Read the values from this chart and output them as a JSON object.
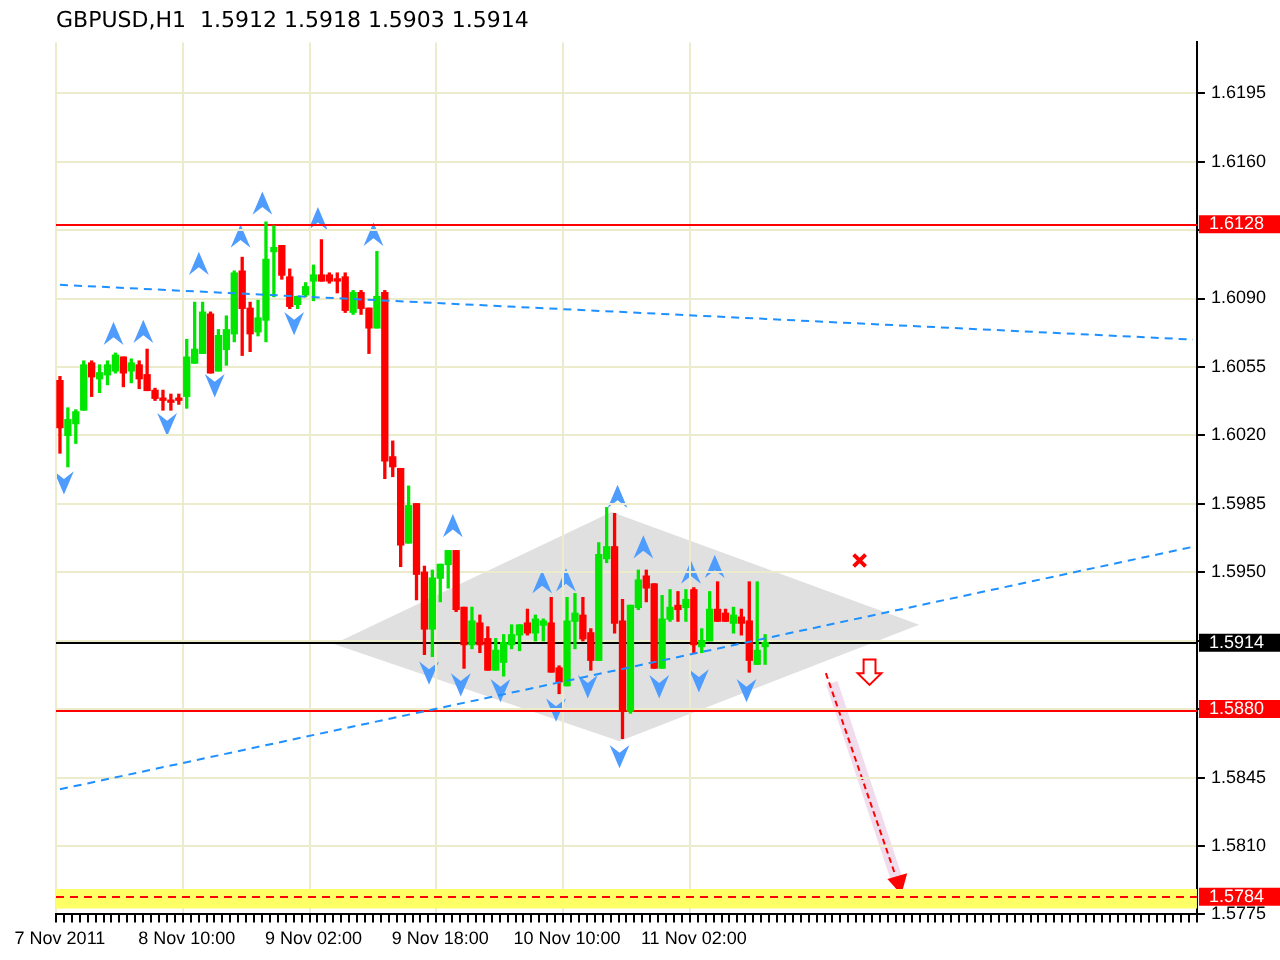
{
  "chart_data": {
    "type": "candlestick",
    "title": "GBPUSD,H1  1.5912 1.5918 1.5903 1.5914",
    "categories": [
      "7 Nov 2011",
      null,
      null,
      null,
      null,
      null,
      null,
      null,
      null,
      null,
      null,
      null,
      null,
      null,
      null,
      null,
      "8 Nov 10:00",
      null,
      null,
      null,
      null,
      null,
      null,
      null,
      null,
      null,
      null,
      null,
      null,
      null,
      null,
      null,
      "9 Nov 02:00",
      null,
      null,
      null,
      null,
      null,
      null,
      null,
      null,
      null,
      null,
      null,
      null,
      null,
      null,
      null,
      "9 Nov 18:00",
      null,
      null,
      null,
      null,
      null,
      null,
      null,
      null,
      null,
      null,
      null,
      null,
      null,
      null,
      null,
      "10 Nov 10:00",
      null,
      null,
      null,
      null,
      null,
      null,
      null,
      null,
      null,
      null,
      null,
      null,
      null,
      null,
      null,
      "11 Nov 02:00",
      null,
      null,
      null,
      null,
      null,
      null,
      null,
      null,
      null,
      null,
      null,
      null,
      null,
      null,
      null,
      null,
      null,
      null,
      null,
      null,
      null,
      null,
      null,
      null,
      null,
      null,
      null,
      null,
      null,
      null,
      null,
      null,
      null,
      null,
      null,
      null,
      null,
      null,
      null,
      null,
      null,
      null,
      null,
      null,
      null,
      null,
      null,
      null,
      null,
      null,
      null,
      null,
      null,
      null,
      null,
      null,
      null,
      null,
      null,
      null,
      null,
      null,
      null
    ],
    "ohlc": [
      [
        1.6048,
        1.605,
        1.6011,
        1.6024
      ],
      [
        1.602,
        1.6034,
        1.6004,
        1.6028
      ],
      [
        1.6026,
        1.6033,
        1.6016,
        1.6032
      ],
      [
        1.6033,
        1.6058,
        1.6033,
        1.6056
      ],
      [
        1.6057,
        1.6058,
        1.604,
        1.605
      ],
      [
        1.6049,
        1.6056,
        1.6042,
        1.6052
      ],
      [
        1.6051,
        1.6058,
        1.6046,
        1.6056
      ],
      [
        1.6053,
        1.6062,
        1.6052,
        1.6061
      ],
      [
        1.606,
        1.606,
        1.6045,
        1.6052
      ],
      [
        1.6053,
        1.6059,
        1.6047,
        1.6057
      ],
      [
        1.6056,
        1.6058,
        1.6044,
        1.6049
      ],
      [
        1.6051,
        1.6064,
        1.6043,
        1.6043
      ],
      [
        1.6043,
        1.6044,
        1.6038,
        1.6039
      ],
      [
        1.6039,
        1.6043,
        1.6033,
        1.6038
      ],
      [
        1.6038,
        1.6041,
        1.6033,
        1.6037
      ],
      [
        1.6039,
        1.6041,
        1.6036,
        1.6038
      ],
      [
        1.604,
        1.6069,
        1.6034,
        1.606
      ],
      [
        1.6057,
        1.6088,
        1.6057,
        1.6064
      ],
      [
        1.6062,
        1.6088,
        1.6062,
        1.6083
      ],
      [
        1.6082,
        1.6083,
        1.6052,
        1.6052
      ],
      [
        1.6053,
        1.6074,
        1.6053,
        1.6071
      ],
      [
        1.6064,
        1.6081,
        1.6056,
        1.6074
      ],
      [
        1.6072,
        1.6104,
        1.6068,
        1.6103
      ],
      [
        1.6104,
        1.6111,
        1.6061,
        1.6085
      ],
      [
        1.6085,
        1.6088,
        1.6063,
        1.6072
      ],
      [
        1.6073,
        1.6089,
        1.6071,
        1.608
      ],
      [
        1.6079,
        1.6129,
        1.6068,
        1.611
      ],
      [
        1.6114,
        1.6127,
        1.6091,
        1.6116
      ],
      [
        1.6117,
        1.6117,
        1.61,
        1.6102
      ],
      [
        1.6101,
        1.6105,
        1.6085,
        1.6086
      ],
      [
        1.6087,
        1.6091,
        1.6085,
        1.6091
      ],
      [
        1.6092,
        1.6098,
        1.6091,
        1.6096
      ],
      [
        1.6099,
        1.6107,
        1.6089,
        1.6102
      ],
      [
        1.6102,
        1.612,
        1.6099,
        1.6099
      ],
      [
        1.6102,
        1.6103,
        1.6098,
        1.6099
      ],
      [
        1.61,
        1.6103,
        1.6093,
        1.6099
      ],
      [
        1.6101,
        1.6103,
        1.6083,
        1.6084
      ],
      [
        1.6083,
        1.6094,
        1.6082,
        1.6093
      ],
      [
        1.6093,
        1.6094,
        1.6082,
        1.6085
      ],
      [
        1.6085,
        1.6085,
        1.6062,
        1.6075
      ],
      [
        1.6075,
        1.6114,
        1.6075,
        1.6091
      ],
      [
        1.6093,
        1.6094,
        1.5998,
        1.6007
      ],
      [
        1.6009,
        1.6017,
        1.5999,
        1.6004
      ],
      [
        1.6003,
        1.6003,
        1.5953,
        1.5964
      ],
      [
        1.5965,
        1.5994,
        1.5965,
        1.5984
      ],
      [
        1.5985,
        1.5985,
        1.5936,
        1.5949
      ],
      [
        1.595,
        1.5953,
        1.5908,
        1.5921
      ],
      [
        1.5921,
        1.5951,
        1.5907,
        1.5947
      ],
      [
        1.5947,
        1.5954,
        1.5935,
        1.5954
      ],
      [
        1.5954,
        1.5961,
        1.5942,
        1.5961
      ],
      [
        1.5961,
        1.5961,
        1.593,
        1.5931
      ],
      [
        1.5932,
        1.5932,
        1.5901,
        1.5913
      ],
      [
        1.5913,
        1.5932,
        1.5911,
        1.5925
      ],
      [
        1.5924,
        1.5928,
        1.5909,
        1.5913
      ],
      [
        1.5916,
        1.5922,
        1.59,
        1.59
      ],
      [
        1.59,
        1.5916,
        1.59,
        1.591
      ],
      [
        1.5904,
        1.5918,
        1.5897,
        1.5914
      ],
      [
        1.5913,
        1.5923,
        1.5911,
        1.5918
      ],
      [
        1.5918,
        1.5923,
        1.591,
        1.5923
      ],
      [
        1.5924,
        1.5931,
        1.5918,
        1.5919
      ],
      [
        1.5919,
        1.5928,
        1.5915,
        1.5926
      ],
      [
        1.5923,
        1.5926,
        1.5915,
        1.5925
      ],
      [
        1.5924,
        1.5937,
        1.5899,
        1.5899
      ],
      [
        1.5901,
        1.5902,
        1.5888,
        1.5894
      ],
      [
        1.5892,
        1.5937,
        1.5892,
        1.5925
      ],
      [
        1.5925,
        1.5939,
        1.5911,
        1.5929
      ],
      [
        1.5928,
        1.5937,
        1.5915,
        1.5916
      ],
      [
        1.5919,
        1.5921,
        1.59,
        1.5905
      ],
      [
        1.5905,
        1.5965,
        1.5905,
        1.5959
      ],
      [
        1.5957,
        1.5983,
        1.5955,
        1.5963
      ],
      [
        1.5963,
        1.598,
        1.5919,
        1.5924
      ],
      [
        1.5925,
        1.5936,
        1.5865,
        1.5879
      ],
      [
        1.5879,
        1.5933,
        1.5878,
        1.5933
      ],
      [
        1.5932,
        1.5951,
        1.5931,
        1.5946
      ],
      [
        1.5948,
        1.5951,
        1.5935,
        1.5942
      ],
      [
        1.5944,
        1.5944,
        1.5901,
        1.5901
      ],
      [
        1.5901,
        1.5938,
        1.5901,
        1.5926
      ],
      [
        1.5926,
        1.5941,
        1.5925,
        1.5932
      ],
      [
        1.5933,
        1.594,
        1.5925,
        1.5931
      ],
      [
        1.5932,
        1.5941,
        1.5925,
        1.5936
      ],
      [
        1.5941,
        1.5942,
        1.5909,
        1.5913
      ],
      [
        1.5912,
        1.5921,
        1.5909,
        1.5915
      ],
      [
        1.5915,
        1.594,
        1.5915,
        1.5931
      ],
      [
        1.5931,
        1.5945,
        1.5925,
        1.5925
      ],
      [
        1.5929,
        1.5931,
        1.5925,
        1.5925
      ],
      [
        1.5924,
        1.5932,
        1.5919,
        1.5928
      ],
      [
        1.5927,
        1.5931,
        1.5918,
        1.5924
      ],
      [
        1.5925,
        1.5945,
        1.5899,
        1.5905
      ],
      [
        1.5903,
        1.5945,
        1.5903,
        1.591
      ],
      [
        1.5912,
        1.5918,
        1.5903,
        1.5914
      ],
      null,
      null,
      null,
      null,
      null,
      null,
      null,
      null,
      null,
      null,
      null,
      null,
      null,
      null,
      null,
      null,
      null,
      null,
      null,
      null,
      null,
      null,
      null,
      null,
      null,
      null,
      null,
      null,
      null,
      null,
      null,
      null,
      null,
      null,
      null,
      null,
      null,
      null,
      null,
      null,
      null,
      null,
      null,
      null,
      null,
      null,
      null,
      null,
      null,
      null,
      null,
      null,
      null,
      null
    ],
    "series": [
      {
        "type": "line",
        "color": "#1e90ff",
        "line_style": "dashed",
        "values": [
          1.6097,
          null,
          null,
          null,
          null,
          null,
          null,
          null,
          null,
          null,
          null,
          null,
          null,
          null,
          null,
          null,
          null,
          null,
          null,
          null,
          null,
          null,
          null,
          null,
          null,
          null,
          null,
          null,
          null,
          null,
          null,
          null,
          null,
          null,
          null,
          null,
          null,
          null,
          null,
          null,
          null,
          null,
          null,
          null,
          null,
          null,
          null,
          null,
          null,
          null,
          null,
          null,
          null,
          null,
          null,
          null,
          null,
          null,
          null,
          null,
          null,
          null,
          null,
          null,
          null,
          null,
          null,
          null,
          null,
          null,
          null,
          null,
          null,
          null,
          null,
          null,
          null,
          null,
          null,
          null,
          null,
          null,
          null,
          null,
          null,
          null,
          null,
          null,
          null,
          null,
          null,
          null,
          null,
          null,
          null,
          null,
          null,
          null,
          null,
          null,
          null,
          null,
          null,
          null,
          null,
          null,
          null,
          null,
          null,
          null,
          null,
          null,
          null,
          null,
          null,
          null,
          null,
          null,
          null,
          null,
          null,
          null,
          null,
          null,
          null,
          null,
          null,
          null,
          null,
          null,
          null,
          null,
          null,
          null,
          null,
          null,
          null,
          null,
          null,
          null,
          null,
          null,
          null,
          1.6069
        ]
      },
      {
        "type": "line",
        "color": "#1e90ff",
        "line_style": "dashed",
        "values": [
          1.5839,
          null,
          null,
          null,
          null,
          null,
          null,
          null,
          null,
          null,
          null,
          null,
          null,
          null,
          null,
          null,
          null,
          null,
          null,
          null,
          null,
          null,
          null,
          null,
          null,
          null,
          null,
          null,
          null,
          null,
          null,
          null,
          null,
          null,
          null,
          null,
          null,
          null,
          null,
          null,
          null,
          null,
          null,
          null,
          null,
          null,
          null,
          null,
          null,
          null,
          null,
          null,
          null,
          null,
          null,
          null,
          null,
          null,
          null,
          null,
          null,
          null,
          null,
          null,
          null,
          null,
          null,
          null,
          null,
          null,
          null,
          null,
          null,
          null,
          null,
          null,
          null,
          null,
          null,
          null,
          null,
          null,
          null,
          null,
          null,
          null,
          null,
          null,
          null,
          null,
          null,
          null,
          null,
          null,
          null,
          null,
          null,
          null,
          null,
          null,
          null,
          null,
          null,
          null,
          null,
          null,
          null,
          null,
          null,
          null,
          null,
          null,
          null,
          null,
          null,
          null,
          null,
          null,
          null,
          null,
          null,
          null,
          null,
          null,
          null,
          null,
          null,
          null,
          null,
          null,
          null,
          null,
          null,
          null,
          null,
          null,
          null,
          null,
          null,
          null,
          null,
          null,
          null,
          1.5963
        ]
      }
    ],
    "ylim": [
      1.5775,
      1.6221
    ],
    "yticks": [
      1.6195,
      {
        "value": 1.616,
        "label": "1.6160"
      },
      {
        "value": 1.6125,
        "label": null
      },
      {
        "value": 1.609,
        "label": "1.6090"
      },
      1.6055,
      {
        "value": 1.602,
        "label": "1.6020"
      },
      1.5985,
      {
        "value": 1.595,
        "label": "1.5950"
      },
      {
        "value": 1.5915,
        "label": null
      },
      {
        "value": 1.588,
        "label": null
      },
      1.5845,
      {
        "value": 1.581,
        "label": "1.5810"
      },
      1.5775
    ],
    "ref_lines": [
      {
        "axis": "y",
        "value": 1.6128,
        "label": "1.6128",
        "color": "#ff0000"
      },
      {
        "axis": "y",
        "value": 1.588,
        "label": "1.5880",
        "color": "#ff0000"
      },
      {
        "axis": "y",
        "value": 1.5914,
        "label": "1.5914",
        "color": "#000000"
      },
      {
        "axis": "y",
        "value": 1.5784,
        "label": "1.5784",
        "color": "#ff0000",
        "line_style": "dashed"
      }
    ],
    "bands": [
      {
        "axis": "y",
        "from": 1.5778,
        "to": 1.5788,
        "color": "#ffff66"
      }
    ],
    "grid": true,
    "legend": false
  }
}
